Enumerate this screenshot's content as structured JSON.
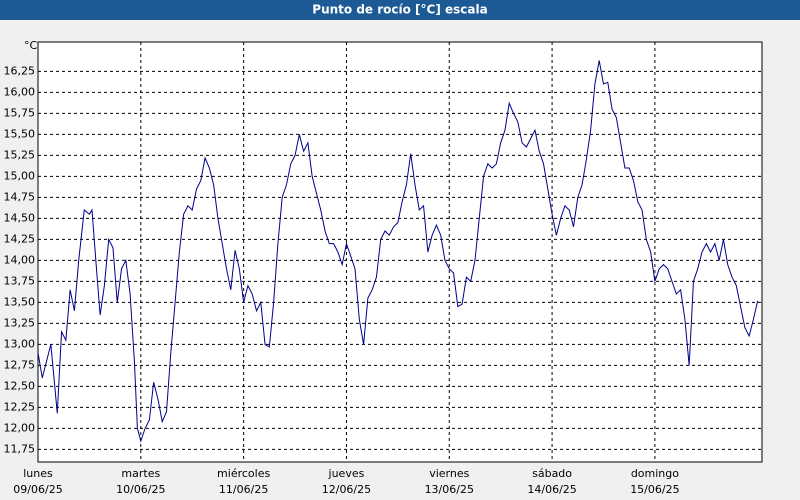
{
  "chart_data": {
    "type": "line",
    "title": "Punto de rocío [°C] escala",
    "y_unit": "°C",
    "x": [
      0,
      1,
      3,
      4.5,
      5.5,
      6.5,
      7.5,
      8.5,
      9.5,
      10.8,
      12,
      12.6,
      13.5,
      14.5,
      15.5,
      16.5,
      17.5,
      18.5,
      19.5,
      20.5,
      21.5,
      22.5,
      23.2,
      24,
      25,
      26,
      27,
      28,
      29,
      30,
      31,
      32,
      33,
      34,
      35,
      36,
      37,
      38,
      39,
      40,
      41,
      42,
      43,
      44,
      45,
      46,
      47,
      48,
      49,
      50,
      51,
      52,
      53,
      54,
      55,
      56,
      57,
      58,
      59,
      60,
      61,
      62,
      63,
      64,
      65,
      66,
      67,
      68,
      69,
      70,
      71,
      72,
      73,
      74,
      75,
      76,
      77,
      78,
      79,
      80,
      81,
      82,
      83,
      84,
      85,
      86,
      87,
      88,
      89,
      90,
      91,
      92,
      93,
      94,
      95,
      96,
      97,
      98,
      99,
      100,
      101,
      102,
      103,
      104,
      105,
      106,
      107,
      108,
      109,
      110,
      111,
      112,
      113,
      114,
      115,
      116,
      117,
      118,
      119,
      120,
      121,
      122,
      123,
      124,
      125,
      126,
      127,
      128,
      129,
      130,
      131,
      132,
      133,
      134,
      135,
      136,
      137,
      138,
      139,
      140,
      141,
      142,
      143,
      144,
      145,
      146,
      147,
      148,
      149,
      150,
      151,
      152,
      153,
      154,
      155,
      156,
      157,
      158,
      159,
      160,
      161,
      162,
      163,
      164,
      165,
      166,
      167,
      168
    ],
    "values": [
      12.9,
      12.6,
      13.0,
      12.18,
      13.15,
      13.05,
      13.65,
      13.4,
      14.0,
      14.6,
      14.55,
      14.6,
      14.0,
      13.35,
      13.7,
      14.25,
      14.15,
      13.5,
      13.9,
      14.0,
      13.6,
      12.8,
      12.0,
      11.85,
      12.0,
      12.1,
      12.55,
      12.35,
      12.08,
      12.2,
      12.9,
      13.5,
      14.1,
      14.55,
      14.65,
      14.6,
      14.85,
      14.95,
      15.22,
      15.1,
      14.9,
      14.5,
      14.2,
      13.9,
      13.65,
      14.12,
      13.9,
      13.5,
      13.7,
      13.6,
      13.4,
      13.5,
      13.0,
      12.97,
      13.5,
      14.2,
      14.75,
      14.9,
      15.15,
      15.25,
      15.5,
      15.3,
      15.4,
      15.0,
      14.8,
      14.6,
      14.35,
      14.2,
      14.2,
      14.1,
      13.95,
      14.2,
      14.05,
      13.9,
      13.3,
      13.0,
      13.55,
      13.65,
      13.8,
      14.25,
      14.35,
      14.3,
      14.4,
      14.45,
      14.7,
      14.9,
      15.27,
      14.9,
      14.6,
      14.65,
      14.1,
      14.3,
      14.42,
      14.3,
      14.0,
      13.9,
      13.85,
      13.45,
      13.48,
      13.8,
      13.75,
      14.0,
      14.5,
      15.0,
      15.15,
      15.1,
      15.15,
      15.4,
      15.55,
      15.87,
      15.75,
      15.65,
      15.4,
      15.35,
      15.45,
      15.55,
      15.3,
      15.15,
      14.85,
      14.55,
      14.3,
      14.5,
      14.65,
      14.6,
      14.4,
      14.75,
      14.9,
      15.2,
      15.55,
      16.1,
      16.38,
      16.1,
      16.12,
      15.8,
      15.7,
      15.4,
      15.1,
      15.1,
      14.95,
      14.7,
      14.6,
      14.25,
      14.1,
      13.75,
      13.9,
      13.95,
      13.9,
      13.75,
      13.6,
      13.65,
      13.3,
      12.75,
      13.75,
      13.9,
      14.1,
      14.2,
      14.1,
      14.2,
      14.0,
      14.25,
      13.95,
      13.8,
      13.7,
      13.45,
      13.2,
      13.1,
      13.3,
      13.52
    ],
    "color": "#00008b",
    "xlim": [
      0,
      169
    ],
    "xticks": [
      {
        "value": 0,
        "label": "lunes",
        "date": "09/06/25"
      },
      {
        "value": 24,
        "label": "martes",
        "date": "10/06/25"
      },
      {
        "value": 48,
        "label": "miércoles",
        "date": "11/06/25"
      },
      {
        "value": 72,
        "label": "jueves",
        "date": "12/06/25"
      },
      {
        "value": 96,
        "label": "viernes",
        "date": "13/06/25"
      },
      {
        "value": 120,
        "label": "sábado",
        "date": "14/06/25"
      },
      {
        "value": 144,
        "label": "domingo",
        "date": "15/06/25"
      }
    ],
    "ylim": [
      11.6,
      16.6
    ],
    "yticks": [
      {
        "value": 11.75,
        "label": "11,75"
      },
      {
        "value": 12,
        "label": "12,00"
      },
      {
        "value": 12.25,
        "label": "12,25"
      },
      {
        "value": 12.5,
        "label": "12,50"
      },
      {
        "value": 12.75,
        "label": "12,75"
      },
      {
        "value": 13,
        "label": "13,00"
      },
      {
        "value": 13.25,
        "label": "13,25"
      },
      {
        "value": 13.5,
        "label": "13,50"
      },
      {
        "value": 13.75,
        "label": "13,75"
      },
      {
        "value": 14,
        "label": "14,00"
      },
      {
        "value": 14.25,
        "label": "14,25"
      },
      {
        "value": 14.5,
        "label": "14,50"
      },
      {
        "value": 14.75,
        "label": "14,75"
      },
      {
        "value": 15,
        "label": "15,00"
      },
      {
        "value": 15.25,
        "label": "15,25"
      },
      {
        "value": 15.5,
        "label": "15,50"
      },
      {
        "value": 15.75,
        "label": "15,75"
      },
      {
        "value": 16,
        "label": "16,00"
      },
      {
        "value": 16.25,
        "label": "16,25"
      }
    ],
    "grid": true
  }
}
